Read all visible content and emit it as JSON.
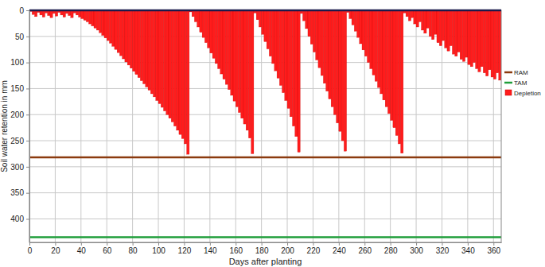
{
  "chart_data": {
    "type": "bar",
    "x_label": "Days after planting",
    "y_label": "Soil water retention in mm",
    "xlim": [
      0,
      366
    ],
    "ylim": [
      0,
      445
    ],
    "xticks": [
      0,
      20,
      40,
      60,
      80,
      100,
      120,
      140,
      160,
      180,
      200,
      220,
      240,
      260,
      280,
      300,
      320,
      340,
      360
    ],
    "yticks": [
      0,
      50,
      100,
      150,
      200,
      250,
      300,
      350,
      400
    ],
    "grid": true,
    "legend": "right",
    "series": [
      {
        "name": "RAM",
        "type": "line",
        "color": "#8b3a0e",
        "x": [
          0,
          366
        ],
        "values": [
          282,
          282
        ]
      },
      {
        "name": "TAM",
        "type": "line",
        "color": "#1f9e3a",
        "x": [
          0,
          366
        ],
        "values": [
          435,
          435
        ]
      },
      {
        "name": "Depletion",
        "type": "bar",
        "color": "#ff1c1c",
        "x": [
          0,
          2,
          4,
          6,
          8,
          10,
          12,
          14,
          16,
          18,
          20,
          22,
          24,
          26,
          28,
          30,
          32,
          34,
          36,
          38,
          40,
          42,
          44,
          46,
          48,
          50,
          52,
          54,
          56,
          58,
          60,
          62,
          64,
          66,
          68,
          70,
          72,
          74,
          76,
          78,
          80,
          82,
          84,
          86,
          88,
          90,
          92,
          94,
          96,
          98,
          100,
          102,
          104,
          106,
          108,
          110,
          112,
          114,
          116,
          118,
          120,
          122,
          124,
          126,
          128,
          130,
          132,
          134,
          136,
          138,
          140,
          142,
          144,
          146,
          148,
          150,
          152,
          154,
          156,
          158,
          160,
          162,
          164,
          166,
          168,
          170,
          172,
          174,
          176,
          178,
          180,
          182,
          184,
          186,
          188,
          190,
          192,
          194,
          196,
          198,
          200,
          202,
          204,
          206,
          208,
          210,
          212,
          214,
          216,
          218,
          220,
          222,
          224,
          226,
          228,
          230,
          232,
          234,
          236,
          238,
          240,
          242,
          244,
          246,
          248,
          250,
          252,
          254,
          256,
          258,
          260,
          262,
          264,
          266,
          268,
          270,
          272,
          274,
          276,
          278,
          280,
          282,
          284,
          286,
          288,
          290,
          292,
          294,
          296,
          298,
          300,
          302,
          304,
          306,
          308,
          310,
          312,
          314,
          316,
          318,
          320,
          322,
          324,
          326,
          328,
          330,
          332,
          334,
          336,
          338,
          340,
          342,
          344,
          346,
          348,
          350,
          352,
          354,
          356,
          358,
          360,
          362,
          364
        ],
        "values": [
          2,
          8,
          12,
          4,
          9,
          13,
          5,
          10,
          14,
          6,
          11,
          4,
          9,
          13,
          6,
          10,
          14,
          5,
          9,
          13,
          16,
          19,
          22,
          26,
          30,
          34,
          38,
          43,
          48,
          53,
          58,
          63,
          69,
          75,
          81,
          87,
          93,
          99,
          105,
          111,
          117,
          123,
          129,
          135,
          141,
          147,
          153,
          160,
          166,
          173,
          179,
          186,
          193,
          200,
          207,
          214,
          222,
          230,
          238,
          246,
          256,
          276,
          3,
          12,
          22,
          32,
          42,
          52,
          62,
          72,
          82,
          92,
          102,
          112,
          122,
          132,
          142,
          152,
          163,
          174,
          185,
          196,
          207,
          218,
          230,
          245,
          275,
          5,
          18,
          32,
          46,
          60,
          74,
          88,
          102,
          116,
          130,
          144,
          158,
          173,
          188,
          204,
          222,
          242,
          272,
          6,
          20,
          35,
          50,
          65,
          80,
          95,
          110,
          125,
          140,
          155,
          170,
          185,
          200,
          216,
          232,
          250,
          270,
          4,
          16,
          28,
          40,
          52,
          64,
          76,
          88,
          100,
          112,
          124,
          136,
          148,
          160,
          172,
          185,
          198,
          211,
          225,
          240,
          256,
          274,
          5,
          12,
          20,
          14,
          26,
          32,
          22,
          38,
          44,
          34,
          50,
          56,
          46,
          62,
          68,
          58,
          72,
          78,
          68,
          84,
          88,
          80,
          94,
          98,
          90,
          104,
          108,
          100,
          112,
          118,
          108,
          120,
          126,
          114,
          128,
          132,
          120,
          134
        ]
      }
    ]
  }
}
